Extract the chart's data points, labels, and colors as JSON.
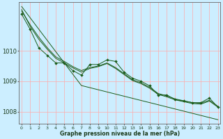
{
  "title": "Graphe pression niveau de la mer (hPa)",
  "bg_color": "#cceeff",
  "grid_color_major": "#ffaaaa",
  "line_color": "#1a5c1a",
  "x_ticks": [
    0,
    1,
    2,
    3,
    4,
    5,
    6,
    7,
    8,
    9,
    10,
    11,
    12,
    13,
    14,
    15,
    16,
    17,
    18,
    19,
    20,
    21,
    22,
    23
  ],
  "y_ticks": [
    1008,
    1009,
    1010
  ],
  "ylim": [
    1007.6,
    1011.6
  ],
  "xlim": [
    -0.3,
    23.3
  ],
  "series_main": [
    1011.2,
    1010.7,
    1010.1,
    1009.85,
    1009.6,
    1009.6,
    1009.35,
    1009.2,
    1009.55,
    1009.55,
    1009.7,
    1009.65,
    1009.3,
    1009.1,
    1009.0,
    1008.85,
    1008.55,
    1008.55,
    1008.4,
    1008.35,
    1008.3,
    1008.3,
    1008.45,
    1008.15
  ],
  "series_smooth1": [
    1011.3,
    1010.85,
    1010.45,
    1010.1,
    1009.8,
    1009.65,
    1009.48,
    1009.35,
    1009.45,
    1009.5,
    1009.6,
    1009.45,
    1009.25,
    1009.05,
    1008.95,
    1008.8,
    1008.6,
    1008.52,
    1008.42,
    1008.36,
    1008.3,
    1008.28,
    1008.38,
    1008.18
  ],
  "series_smooth2": [
    1011.35,
    1010.8,
    1010.38,
    1010.05,
    1009.75,
    1009.6,
    1009.44,
    1009.3,
    1009.42,
    1009.48,
    1009.58,
    1009.42,
    1009.22,
    1009.02,
    1008.92,
    1008.77,
    1008.57,
    1008.49,
    1008.39,
    1008.33,
    1008.27,
    1008.25,
    1008.35,
    1008.15
  ],
  "series_linear": [
    1011.45,
    1011.08,
    1010.71,
    1010.34,
    1009.97,
    1009.6,
    1009.23,
    1008.86,
    1008.79,
    1008.72,
    1008.65,
    1008.58,
    1008.51,
    1008.44,
    1008.37,
    1008.3,
    1008.23,
    1008.16,
    1008.09,
    1008.02,
    1007.95,
    1007.88,
    1007.81,
    1007.74
  ],
  "marker_size": 2.0,
  "linewidth": 0.7
}
